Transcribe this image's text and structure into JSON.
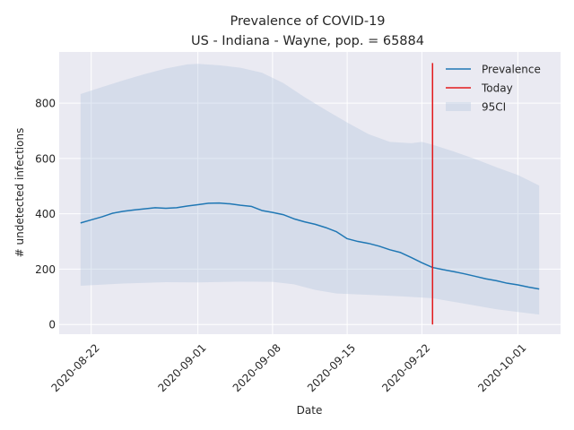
{
  "chart_data": {
    "type": "line",
    "title": "Prevalence of COVID-19",
    "subtitle": "US - Indiana - Wayne, pop. = 65884",
    "xlabel": "Date",
    "ylabel": "# undetected infections",
    "xlim": [
      "2020-08-19",
      "2020-10-05"
    ],
    "ylim": [
      -35,
      985
    ],
    "grid": true,
    "legend_position": "top-right",
    "x_ticks": [
      "2020-08-22",
      "2020-09-01",
      "2020-09-08",
      "2020-09-15",
      "2020-09-22",
      "2020-10-01"
    ],
    "y_ticks": [
      0,
      200,
      400,
      600,
      800
    ],
    "series": [
      {
        "name": "Prevalence",
        "color": "#1f77b4",
        "points": [
          [
            "2020-08-21",
            367
          ],
          [
            "2020-08-22",
            378
          ],
          [
            "2020-08-23",
            389
          ],
          [
            "2020-08-24",
            402
          ],
          [
            "2020-08-25",
            409
          ],
          [
            "2020-08-26",
            414
          ],
          [
            "2020-08-27",
            418
          ],
          [
            "2020-08-28",
            422
          ],
          [
            "2020-08-29",
            420
          ],
          [
            "2020-08-30",
            422
          ],
          [
            "2020-08-31",
            428
          ],
          [
            "2020-09-01",
            433
          ],
          [
            "2020-09-02",
            438
          ],
          [
            "2020-09-03",
            439
          ],
          [
            "2020-09-04",
            436
          ],
          [
            "2020-09-05",
            431
          ],
          [
            "2020-09-06",
            427
          ],
          [
            "2020-09-07",
            412
          ],
          [
            "2020-09-08",
            405
          ],
          [
            "2020-09-09",
            397
          ],
          [
            "2020-09-10",
            382
          ],
          [
            "2020-09-11",
            371
          ],
          [
            "2020-09-12",
            362
          ],
          [
            "2020-09-13",
            350
          ],
          [
            "2020-09-14",
            335
          ],
          [
            "2020-09-15",
            310
          ],
          [
            "2020-09-16",
            300
          ],
          [
            "2020-09-17",
            293
          ],
          [
            "2020-09-18",
            283
          ],
          [
            "2020-09-19",
            270
          ],
          [
            "2020-09-20",
            260
          ],
          [
            "2020-09-21",
            242
          ],
          [
            "2020-09-22",
            223
          ],
          [
            "2020-09-23",
            206
          ],
          [
            "2020-09-24",
            198
          ],
          [
            "2020-09-25",
            191
          ],
          [
            "2020-09-26",
            183
          ],
          [
            "2020-09-27",
            174
          ],
          [
            "2020-09-28",
            165
          ],
          [
            "2020-09-29",
            158
          ],
          [
            "2020-09-30",
            149
          ],
          [
            "2020-10-01",
            143
          ],
          [
            "2020-10-02",
            135
          ],
          [
            "2020-10-03",
            128
          ]
        ]
      },
      {
        "name": "Today",
        "color": "#e31a1c",
        "points": [
          [
            "2020-09-23",
            0
          ],
          [
            "2020-09-23",
            945
          ]
        ]
      }
    ],
    "band": {
      "name": "95CI",
      "color": "#b0c4de",
      "opacity": 0.35,
      "upper": [
        [
          "2020-08-21",
          833
        ],
        [
          "2020-08-23",
          858
        ],
        [
          "2020-08-25",
          882
        ],
        [
          "2020-08-27",
          905
        ],
        [
          "2020-08-29",
          925
        ],
        [
          "2020-08-31",
          940
        ],
        [
          "2020-09-01",
          942
        ],
        [
          "2020-09-03",
          937
        ],
        [
          "2020-09-05",
          928
        ],
        [
          "2020-09-07",
          910
        ],
        [
          "2020-09-09",
          873
        ],
        [
          "2020-09-11",
          822
        ],
        [
          "2020-09-13",
          775
        ],
        [
          "2020-09-15",
          730
        ],
        [
          "2020-09-17",
          688
        ],
        [
          "2020-09-19",
          660
        ],
        [
          "2020-09-21",
          655
        ],
        [
          "2020-09-22",
          660
        ],
        [
          "2020-09-23",
          650
        ],
        [
          "2020-09-25",
          625
        ],
        [
          "2020-09-27",
          598
        ],
        [
          "2020-09-29",
          568
        ],
        [
          "2020-10-01",
          540
        ],
        [
          "2020-10-03",
          502
        ]
      ],
      "lower": [
        [
          "2020-08-21",
          140
        ],
        [
          "2020-08-25",
          148
        ],
        [
          "2020-08-29",
          153
        ],
        [
          "2020-09-01",
          152
        ],
        [
          "2020-09-05",
          155
        ],
        [
          "2020-09-08",
          154
        ],
        [
          "2020-09-10",
          145
        ],
        [
          "2020-09-12",
          125
        ],
        [
          "2020-09-14",
          112
        ],
        [
          "2020-09-17",
          107
        ],
        [
          "2020-09-20",
          102
        ],
        [
          "2020-09-23",
          95
        ],
        [
          "2020-09-26",
          75
        ],
        [
          "2020-09-29",
          55
        ],
        [
          "2020-10-01",
          45
        ],
        [
          "2020-10-03",
          36
        ]
      ]
    }
  }
}
